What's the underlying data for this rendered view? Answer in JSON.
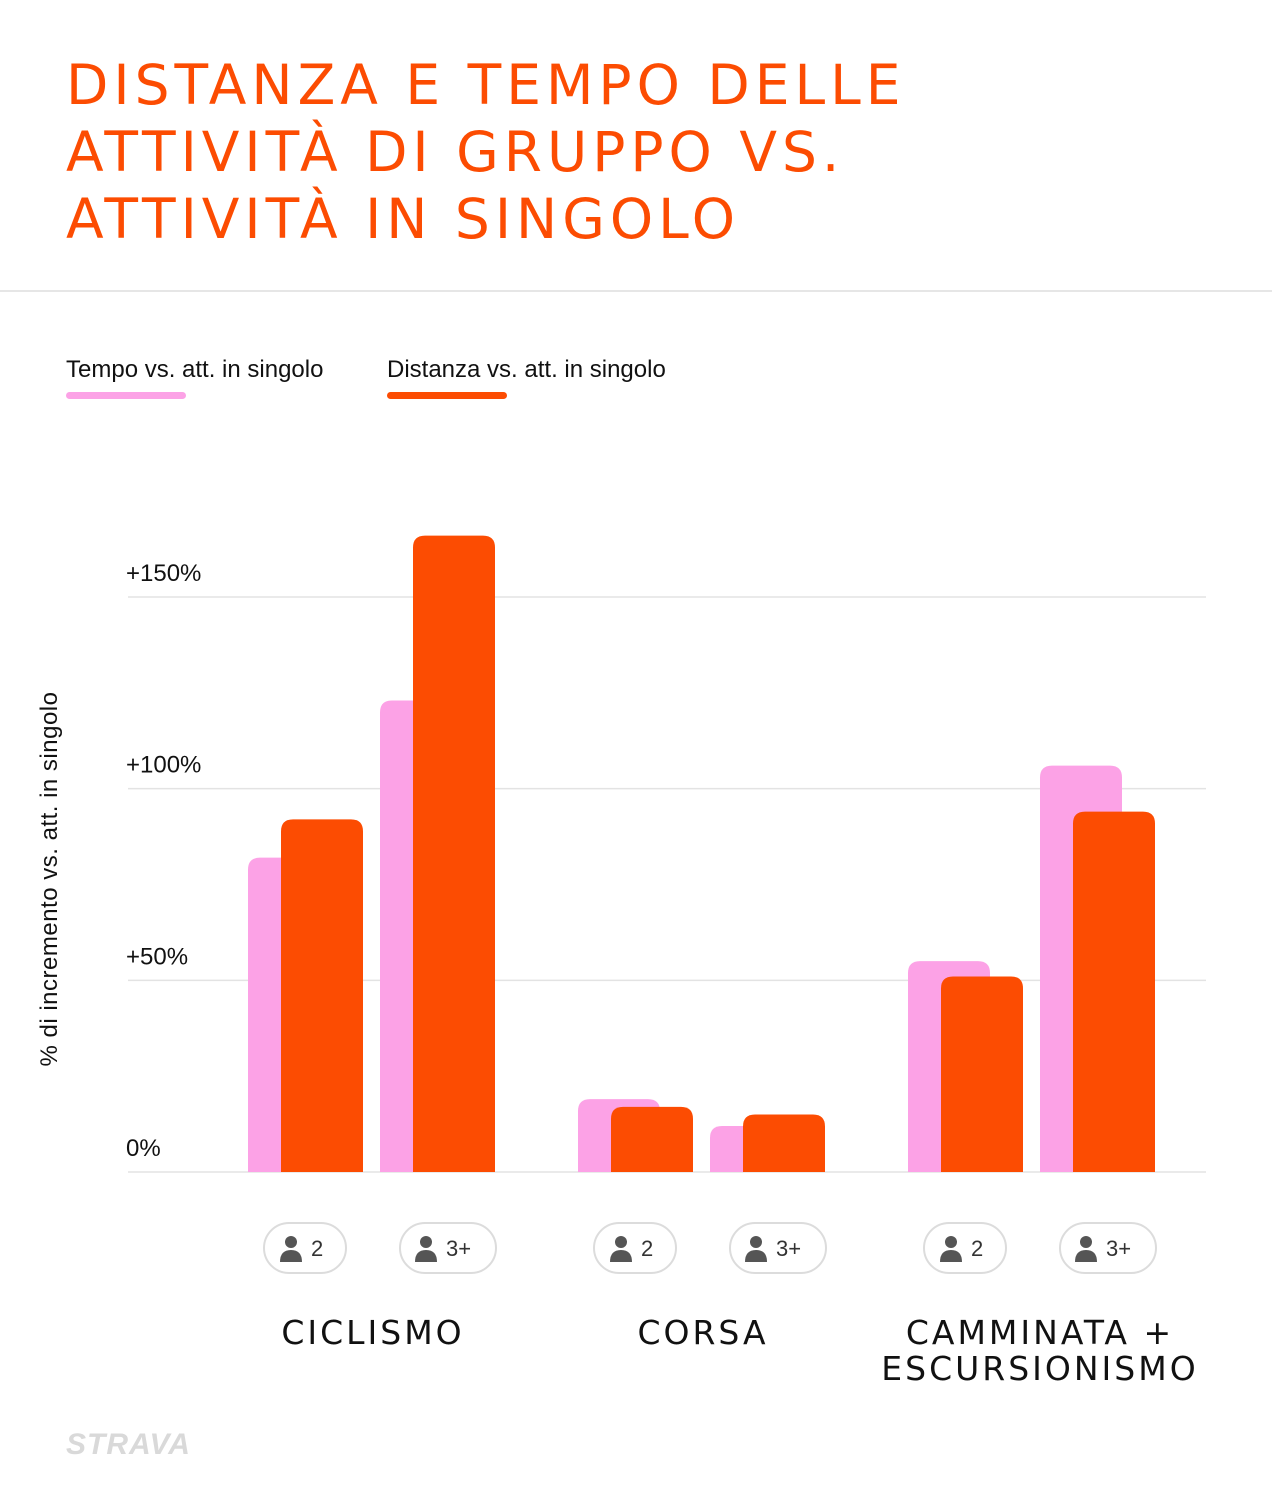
{
  "title": "DISTANZA E TEMPO DELLE ATTIVITÀ DI GRUPPO VS. ATTIVITÀ IN SINGOLO",
  "colors": {
    "accent": "#fc4c02",
    "tempo": "#fca2e6",
    "distanza": "#fc4c02",
    "grid": "#e3e3e3",
    "pill_border": "#dcdcdc",
    "icon": "#555555"
  },
  "legend": [
    {
      "label": "Tempo vs. att. in singolo",
      "color": "#fca2e6"
    },
    {
      "label": "Distanza vs. att. in singolo",
      "color": "#fc4c02"
    }
  ],
  "logo": "STRAVA",
  "chart_data": {
    "type": "bar",
    "ylabel": "% di incremento vs. att. in singolo",
    "ylim": [
      0,
      150
    ],
    "yticks": [
      {
        "value": 0,
        "label": "0%"
      },
      {
        "value": 50,
        "label": "+50%"
      },
      {
        "value": 100,
        "label": "+100%"
      },
      {
        "value": 150,
        "label": "+150%"
      }
    ],
    "grid": true,
    "legend_position": "top-left",
    "groups": [
      {
        "category": "CICLISMO",
        "bars": [
          {
            "size": "2",
            "icon": "person-icon",
            "tempo": 82,
            "distanza": 92
          },
          {
            "size": "3+",
            "icon": "person-icon",
            "tempo": 123,
            "distanza": 166
          }
        ]
      },
      {
        "category": "CORSA",
        "bars": [
          {
            "size": "2",
            "icon": "person-icon",
            "tempo": 19,
            "distanza": 17
          },
          {
            "size": "3+",
            "icon": "person-icon",
            "tempo": 12,
            "distanza": 15
          }
        ]
      },
      {
        "category": "CAMMINATA + ESCURSIONISMO",
        "bars": [
          {
            "size": "2",
            "icon": "person-icon",
            "tempo": 55,
            "distanza": 51
          },
          {
            "size": "3+",
            "icon": "person-icon",
            "tempo": 106,
            "distanza": 94
          }
        ]
      }
    ],
    "series": [
      {
        "name": "Tempo vs. att. in singolo",
        "key": "tempo"
      },
      {
        "name": "Distanza vs. att. in singolo",
        "key": "distanza"
      }
    ]
  }
}
